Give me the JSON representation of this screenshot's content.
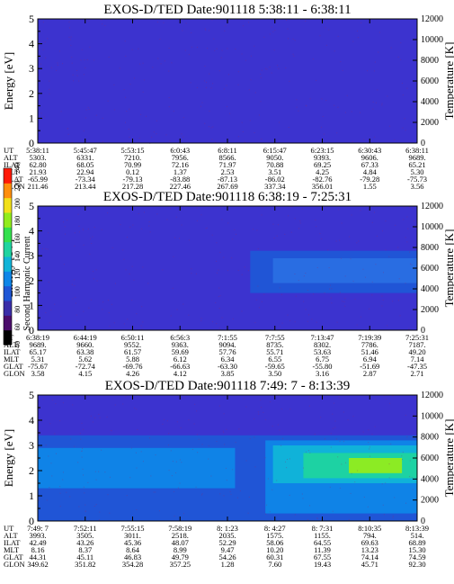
{
  "colorbar": {
    "label": "Second Harmonic Current",
    "ticks": [
      "40",
      "60",
      "80",
      "100",
      "120",
      "140",
      "160",
      "180",
      "200",
      "220",
      "240"
    ],
    "colors": [
      "#000000",
      "#4b0d6b",
      "#3a2ea8",
      "#1f57d6",
      "#0f86e8",
      "#11b4d8",
      "#1fd4a0",
      "#34e04e",
      "#92ec1d",
      "#f2e01a",
      "#ff8e0d",
      "#ff1a08"
    ]
  },
  "chart_data": [
    {
      "type": "heatmap",
      "title": "EXOS-D/TED   Date:901118   5:38:11 - 6:38:11",
      "ylabel": "Energy [eV]",
      "y2label": "Temperature [K]",
      "ylim": [
        0,
        5
      ],
      "y2lim": [
        0,
        12000
      ],
      "yticks": [
        "0",
        "1",
        "2",
        "3",
        "4",
        "5"
      ],
      "y2ticks": [
        "0",
        "2000",
        "4000",
        "6000",
        "8000",
        "10000",
        "12000"
      ],
      "background": "#3c33cf",
      "bands": [],
      "table": {
        "labels": [
          "UT",
          "ALT",
          "ILAT",
          "MLT",
          "GLAT",
          "GLON"
        ],
        "columns": [
          [
            "5:38:11",
            "5303.",
            "62.80",
            "21.93",
            "-65.99",
            "211.46"
          ],
          [
            "5:45:47",
            "6331.",
            "68.05",
            "22.94",
            "-73.34",
            "213.44"
          ],
          [
            "5:53:15",
            "7210.",
            "70.99",
            "0.12",
            "-79.13",
            "217.28"
          ],
          [
            "6:0:43",
            "7956.",
            "72.16",
            "1.37",
            "-83.88",
            "227.46"
          ],
          [
            "6:8:11",
            "8566.",
            "71.97",
            "2.53",
            "-87.13",
            "267.69"
          ],
          [
            "6:15:47",
            "9050.",
            "70.88",
            "3.51",
            "-86.02",
            "337.34"
          ],
          [
            "6:23:15",
            "9393.",
            "69.25",
            "4.25",
            "-82.76",
            "356.01"
          ],
          [
            "6:30:43",
            "9606.",
            "67.33",
            "4.84",
            "-79.28",
            "1.55"
          ],
          [
            "6:38:11",
            "9689.",
            "65.21",
            "5.30",
            "-75.73",
            "3.56"
          ]
        ]
      }
    },
    {
      "type": "heatmap",
      "title": "EXOS-D/TED   Date:901118   6:38:19 - 7:25:31",
      "ylabel": "Energy [eV]",
      "y2label": "Temperature [K]",
      "ylim": [
        0,
        5
      ],
      "y2lim": [
        0,
        12000
      ],
      "yticks": [
        "0",
        "1",
        "2",
        "3",
        "4",
        "5"
      ],
      "y2ticks": [
        "0",
        "2000",
        "4000",
        "6000",
        "8000",
        "10000",
        "12000"
      ],
      "background": "#3c33cf",
      "bands": [
        {
          "x0": 0.56,
          "x1": 1.0,
          "y0": 1.5,
          "y1": 3.2,
          "color": "#1f57d6"
        },
        {
          "x0": 0.62,
          "x1": 1.0,
          "y0": 1.9,
          "y1": 2.9,
          "color": "#2a6fe3"
        }
      ],
      "table": {
        "labels": [
          "UT",
          "ALT",
          "ILAT",
          "MLT",
          "GLAT",
          "GLON"
        ],
        "columns": [
          [
            "6:38:19",
            "9689.",
            "65.17",
            "5.31",
            "-75.67",
            "3.58"
          ],
          [
            "6:44:19",
            "9660.",
            "63.38",
            "5.62",
            "-72.74",
            "4.15"
          ],
          [
            "6:50:11",
            "9552.",
            "61.57",
            "5.88",
            "-69.76",
            "4.26"
          ],
          [
            "6:56:3",
            "9363.",
            "59.69",
            "6.12",
            "-66.63",
            "4.12"
          ],
          [
            "7:1:55",
            "9094.",
            "57.76",
            "6.34",
            "-63.30",
            "3.85"
          ],
          [
            "7:7:55",
            "8735.",
            "55.71",
            "6.55",
            "-59.65",
            "3.50"
          ],
          [
            "7:13:47",
            "8302.",
            "53.63",
            "6.75",
            "-55.80",
            "3.16"
          ],
          [
            "7:19:39",
            "7786.",
            "51.46",
            "6.94",
            "-51.69",
            "2.87"
          ],
          [
            "7:25:31",
            "7187.",
            "49.20",
            "7.14",
            "-47.35",
            "2.71"
          ]
        ]
      }
    },
    {
      "type": "heatmap",
      "title": "EXOS-D/TED   Date:901118   7:49: 7 - 8:13:39",
      "ylabel": "Energy [eV]",
      "y2label": "Temperature [K]",
      "ylim": [
        0,
        5
      ],
      "y2lim": [
        0,
        12000
      ],
      "yticks": [
        "0",
        "1",
        "2",
        "3",
        "4",
        "5"
      ],
      "y2ticks": [
        "0",
        "2000",
        "4000",
        "6000",
        "8000",
        "10000",
        "12000"
      ],
      "background": "#3c33cf",
      "bands": [
        {
          "x0": 0.0,
          "x1": 1.0,
          "y0": 0.0,
          "y1": 3.4,
          "color": "#1f57d6"
        },
        {
          "x0": 0.0,
          "x1": 0.52,
          "y0": 1.3,
          "y1": 2.9,
          "color": "#0f86e8"
        },
        {
          "x0": 0.6,
          "x1": 1.0,
          "y0": 0.3,
          "y1": 3.2,
          "color": "#0f86e8"
        },
        {
          "x0": 0.62,
          "x1": 1.0,
          "y0": 1.5,
          "y1": 3.0,
          "color": "#11b4d8"
        },
        {
          "x0": 0.7,
          "x1": 1.0,
          "y0": 1.7,
          "y1": 2.7,
          "color": "#1fd4a0"
        },
        {
          "x0": 0.82,
          "x1": 0.96,
          "y0": 1.9,
          "y1": 2.5,
          "color": "#92ec1d"
        }
      ],
      "table": {
        "labels": [
          "UT",
          "ALT",
          "ILAT",
          "MLT",
          "GLAT",
          "GLON"
        ],
        "columns": [
          [
            "7:49: 7",
            "3993.",
            "42.49",
            "8.16",
            "44.31",
            "349.62"
          ],
          [
            "7:52:11",
            "3505.",
            "43.26",
            "8.37",
            "45.11",
            "351.82"
          ],
          [
            "7:55:15",
            "3011.",
            "45.36",
            "8.64",
            "46.83",
            "354.28"
          ],
          [
            "7:58:19",
            "2518.",
            "48.07",
            "8.99",
            "49.79",
            "357.25"
          ],
          [
            "8: 1:23",
            "2035.",
            "52.29",
            "9.47",
            "54.26",
            "1.28"
          ],
          [
            "8: 4:27",
            "1575.",
            "58.06",
            "10.20",
            "60.31",
            "7.60"
          ],
          [
            "8: 7:31",
            "1155.",
            "64.55",
            "11.39",
            "67.55",
            "19.43"
          ],
          [
            "8:10:35",
            "794.",
            "69.63",
            "13.23",
            "74.14",
            "45.71"
          ],
          [
            "8:13:39",
            "514.",
            "68.89",
            "15.30",
            "74.59",
            "92.30"
          ]
        ]
      }
    }
  ]
}
